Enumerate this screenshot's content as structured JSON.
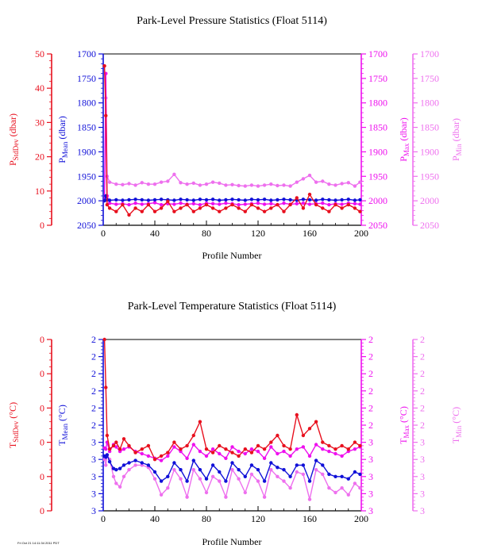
{
  "footer_stamp": "Fri Oct 21 14:11:34 2011 PDT",
  "colors": {
    "stddev": "#e8101e",
    "mean": "#1010d8",
    "max": "#ee10ee",
    "min": "#ee70ee",
    "axis": "#000000"
  },
  "chart_data": [
    {
      "type": "line",
      "title": "Park-Level Pressure Statistics (Float 5114)",
      "xlabel": "Profile Number",
      "xlim": [
        0,
        200
      ],
      "x_ticks": [
        "0",
        "40",
        "80",
        "120",
        "160",
        "200"
      ],
      "axes": {
        "stddev": {
          "label_main": "P",
          "label_sub": "StdDev",
          "label_unit": " (dbar)",
          "lim": [
            0,
            50
          ],
          "ticks": [
            "0",
            "10",
            "20",
            "30",
            "40",
            "50"
          ]
        },
        "mean": {
          "label_main": "P",
          "label_sub": "Mean",
          "label_unit": " (dbar)",
          "lim": [
            2050,
            1700
          ],
          "ticks": [
            "1700",
            "1750",
            "1800",
            "1850",
            "1900",
            "1950",
            "2000",
            "2050"
          ]
        },
        "max": {
          "label_main": "P",
          "label_sub": "Max",
          "label_unit": " (dbar)",
          "lim": [
            2050,
            1700
          ],
          "ticks": [
            "1700",
            "1750",
            "1800",
            "1850",
            "1900",
            "1950",
            "2000",
            "2050"
          ]
        },
        "min": {
          "label_main": "P",
          "label_sub": "Min",
          "label_unit": " (dbar)",
          "lim": [
            2050,
            1700
          ],
          "ticks": [
            "1700",
            "1750",
            "1800",
            "1850",
            "1900",
            "1950",
            "2000",
            "2050"
          ]
        }
      },
      "series": [
        {
          "key": "min",
          "axis": "min",
          "x": [
            1,
            2,
            3,
            5,
            10,
            15,
            20,
            25,
            30,
            35,
            40,
            45,
            50,
            55,
            60,
            65,
            70,
            75,
            80,
            85,
            90,
            95,
            100,
            105,
            110,
            115,
            120,
            125,
            130,
            135,
            140,
            145,
            150,
            155,
            160,
            165,
            170,
            175,
            180,
            185,
            190,
            195,
            199
          ],
          "values": [
            2000,
            1790,
            1950,
            1962,
            1966,
            1967,
            1965,
            1968,
            1963,
            1966,
            1966,
            1962,
            1960,
            1946,
            1963,
            1966,
            1964,
            1968,
            1966,
            1962,
            1964,
            1968,
            1967,
            1969,
            1970,
            1968,
            1970,
            1968,
            1966,
            1969,
            1968,
            1970,
            1962,
            1955,
            1948,
            1962,
            1960,
            1966,
            1968,
            1965,
            1963,
            1970,
            1962
          ]
        },
        {
          "key": "max",
          "axis": "max",
          "x": [
            1,
            2,
            3,
            5,
            10,
            15,
            20,
            25,
            30,
            35,
            40,
            45,
            50,
            55,
            60,
            65,
            70,
            75,
            80,
            85,
            90,
            95,
            100,
            105,
            110,
            115,
            120,
            125,
            130,
            135,
            140,
            145,
            150,
            155,
            160,
            165,
            170,
            175,
            180,
            185,
            190,
            195,
            199
          ],
          "values": [
            2000,
            1740,
            1990,
            2005,
            2007,
            2006,
            2008,
            2005,
            2007,
            2006,
            2004,
            2008,
            2006,
            2007,
            2005,
            2007,
            2006,
            2008,
            2005,
            2006,
            2007,
            2005,
            2006,
            2008,
            2007,
            2006,
            2005,
            2007,
            2006,
            2008,
            2005,
            2007,
            2006,
            2005,
            2007,
            2006,
            2005,
            2008,
            2006,
            2007,
            2005,
            2006,
            2007
          ]
        },
        {
          "key": "mean",
          "axis": "mean",
          "x": [
            1,
            2,
            3,
            5,
            10,
            15,
            20,
            25,
            30,
            35,
            40,
            45,
            50,
            55,
            60,
            65,
            70,
            75,
            80,
            85,
            90,
            95,
            100,
            105,
            110,
            115,
            120,
            125,
            130,
            135,
            140,
            145,
            150,
            155,
            160,
            165,
            170,
            175,
            180,
            185,
            190,
            195,
            199
          ],
          "values": [
            2000,
            1990,
            1998,
            1999,
            1998,
            1999,
            1998,
            1997,
            1998,
            1999,
            1998,
            1997,
            1998,
            1999,
            1997,
            1998,
            1999,
            1997,
            1998,
            1997,
            1999,
            1998,
            1997,
            1998,
            1999,
            1997,
            1998,
            1997,
            1999,
            1998,
            1997,
            1998,
            1999,
            1997,
            1998,
            1999,
            1997,
            1998,
            1999,
            1998,
            1997,
            1999,
            1998
          ]
        },
        {
          "key": "stddev",
          "axis": "stddev",
          "x": [
            1,
            2,
            3,
            5,
            10,
            15,
            20,
            25,
            30,
            35,
            40,
            45,
            50,
            55,
            60,
            65,
            70,
            75,
            80,
            85,
            90,
            95,
            100,
            105,
            110,
            115,
            120,
            125,
            130,
            135,
            140,
            145,
            150,
            155,
            160,
            165,
            170,
            175,
            180,
            185,
            190,
            195,
            199
          ],
          "values": [
            46.5,
            32,
            6,
            5,
            4,
            6,
            3,
            5,
            4,
            6,
            4,
            5,
            7,
            4,
            5,
            6,
            4,
            5,
            6,
            5,
            4,
            5,
            6,
            5,
            4,
            6,
            5,
            4,
            5,
            6,
            4,
            6,
            8,
            5,
            9,
            6,
            5,
            4,
            6,
            5,
            6,
            5,
            4
          ]
        }
      ]
    },
    {
      "type": "line",
      "title": "Park-Level Temperature Statistics (Float 5114)",
      "xlabel": "Profile Number",
      "xlim": [
        0,
        200
      ],
      "x_ticks": [
        "0",
        "40",
        "80",
        "120",
        "160",
        "200"
      ],
      "axes": {
        "stddev": {
          "label_main": "T",
          "label_sub": "StdDev",
          "label_unit": " (°C)",
          "lim": [
            0,
            0.05
          ],
          "ticks": [
            "0",
            "0",
            "0",
            "0",
            "0",
            "0"
          ]
        },
        "mean": {
          "label_main": "T",
          "label_sub": "Mean",
          "label_unit": " (°C)",
          "lim": [
            1.5,
            3.0
          ],
          "ticks": [
            "2",
            "2",
            "2",
            "2",
            "2",
            "2",
            "3",
            "3",
            "3",
            "3",
            "3"
          ]
        },
        "max": {
          "label_main": "T",
          "label_sub": "Max",
          "label_unit": " (°C)",
          "lim": [
            1.5,
            3.0
          ],
          "ticks": [
            "2",
            "2",
            "2",
            "2",
            "2",
            "2",
            "3",
            "3",
            "3",
            "3",
            "3"
          ]
        },
        "min": {
          "label_main": "T",
          "label_sub": "Min",
          "label_unit": " (°C)",
          "lim": [
            1.5,
            3.0
          ],
          "ticks": [
            "2",
            "2",
            "2",
            "2",
            "2",
            "2",
            "3",
            "3",
            "3",
            "3",
            "3"
          ]
        }
      },
      "series": [
        {
          "key": "min",
          "axis": "min",
          "x": [
            1,
            2,
            3,
            5,
            8,
            10,
            13,
            16,
            20,
            25,
            30,
            35,
            40,
            45,
            50,
            55,
            60,
            65,
            70,
            75,
            80,
            85,
            90,
            95,
            100,
            105,
            110,
            115,
            120,
            125,
            130,
            135,
            140,
            145,
            150,
            155,
            160,
            165,
            170,
            175,
            180,
            185,
            190,
            195,
            199
          ],
          "values": [
            1.95,
            1.9,
            1.99,
            1.95,
            1.8,
            1.74,
            1.71,
            1.8,
            1.86,
            1.9,
            1.9,
            1.88,
            1.78,
            1.64,
            1.7,
            1.86,
            1.78,
            1.62,
            1.86,
            1.78,
            1.66,
            1.8,
            1.76,
            1.62,
            1.86,
            1.78,
            1.66,
            1.82,
            1.76,
            1.62,
            1.86,
            1.8,
            1.76,
            1.7,
            1.84,
            1.82,
            1.6,
            1.86,
            1.82,
            1.7,
            1.66,
            1.7,
            1.64,
            1.74,
            1.7
          ]
        },
        {
          "key": "max",
          "axis": "max",
          "x": [
            1,
            2,
            3,
            5,
            8,
            10,
            13,
            16,
            20,
            25,
            30,
            35,
            40,
            45,
            50,
            55,
            60,
            65,
            70,
            75,
            80,
            85,
            90,
            95,
            100,
            105,
            110,
            115,
            120,
            125,
            130,
            135,
            140,
            145,
            150,
            155,
            160,
            165,
            170,
            175,
            180,
            185,
            190,
            195,
            199
          ],
          "values": [
            2.05,
            2.04,
            2.1,
            2.02,
            2.08,
            2.06,
            2.02,
            2.04,
            2.06,
            2.02,
            2.0,
            1.98,
            1.96,
            1.94,
            1.98,
            2.06,
            2.02,
            1.96,
            2.08,
            2.02,
            1.98,
            2.04,
            2.0,
            1.96,
            2.06,
            2.02,
            2.0,
            2.04,
            2.02,
            1.96,
            2.06,
            2.0,
            2.02,
            1.98,
            2.04,
            2.06,
            1.98,
            2.08,
            2.04,
            2.02,
            2.0,
            1.98,
            2.02,
            2.04,
            2.06
          ]
        },
        {
          "key": "mean",
          "axis": "mean",
          "x": [
            1,
            2,
            3,
            5,
            8,
            10,
            13,
            16,
            20,
            25,
            30,
            35,
            40,
            45,
            50,
            55,
            60,
            65,
            70,
            75,
            80,
            85,
            90,
            95,
            100,
            105,
            110,
            115,
            120,
            125,
            130,
            135,
            140,
            145,
            150,
            155,
            160,
            165,
            170,
            175,
            180,
            185,
            190,
            195,
            199
          ],
          "values": [
            1.98,
            1.97,
            1.99,
            1.93,
            1.87,
            1.86,
            1.87,
            1.9,
            1.92,
            1.94,
            1.92,
            1.9,
            1.84,
            1.76,
            1.8,
            1.92,
            1.86,
            1.76,
            1.94,
            1.86,
            1.78,
            1.9,
            1.84,
            1.76,
            1.92,
            1.86,
            1.8,
            1.9,
            1.86,
            1.76,
            1.92,
            1.88,
            1.86,
            1.8,
            1.9,
            1.9,
            1.76,
            1.94,
            1.9,
            1.82,
            1.8,
            1.8,
            1.78,
            1.84,
            1.82
          ]
        },
        {
          "key": "stddev",
          "axis": "stddev",
          "x": [
            1,
            2,
            3,
            5,
            8,
            10,
            13,
            16,
            20,
            25,
            30,
            35,
            40,
            45,
            50,
            55,
            60,
            65,
            70,
            75,
            80,
            85,
            90,
            95,
            100,
            105,
            110,
            115,
            120,
            125,
            130,
            135,
            140,
            145,
            150,
            155,
            160,
            165,
            170,
            175,
            180,
            185,
            190,
            195,
            199
          ],
          "values": [
            0.05,
            0.036,
            0.022,
            0.018,
            0.019,
            0.02,
            0.018,
            0.021,
            0.019,
            0.017,
            0.018,
            0.019,
            0.015,
            0.016,
            0.017,
            0.02,
            0.018,
            0.019,
            0.022,
            0.026,
            0.018,
            0.017,
            0.019,
            0.018,
            0.017,
            0.016,
            0.018,
            0.017,
            0.019,
            0.018,
            0.02,
            0.022,
            0.019,
            0.018,
            0.028,
            0.022,
            0.024,
            0.026,
            0.02,
            0.019,
            0.018,
            0.019,
            0.018,
            0.02,
            0.019
          ]
        }
      ]
    }
  ]
}
